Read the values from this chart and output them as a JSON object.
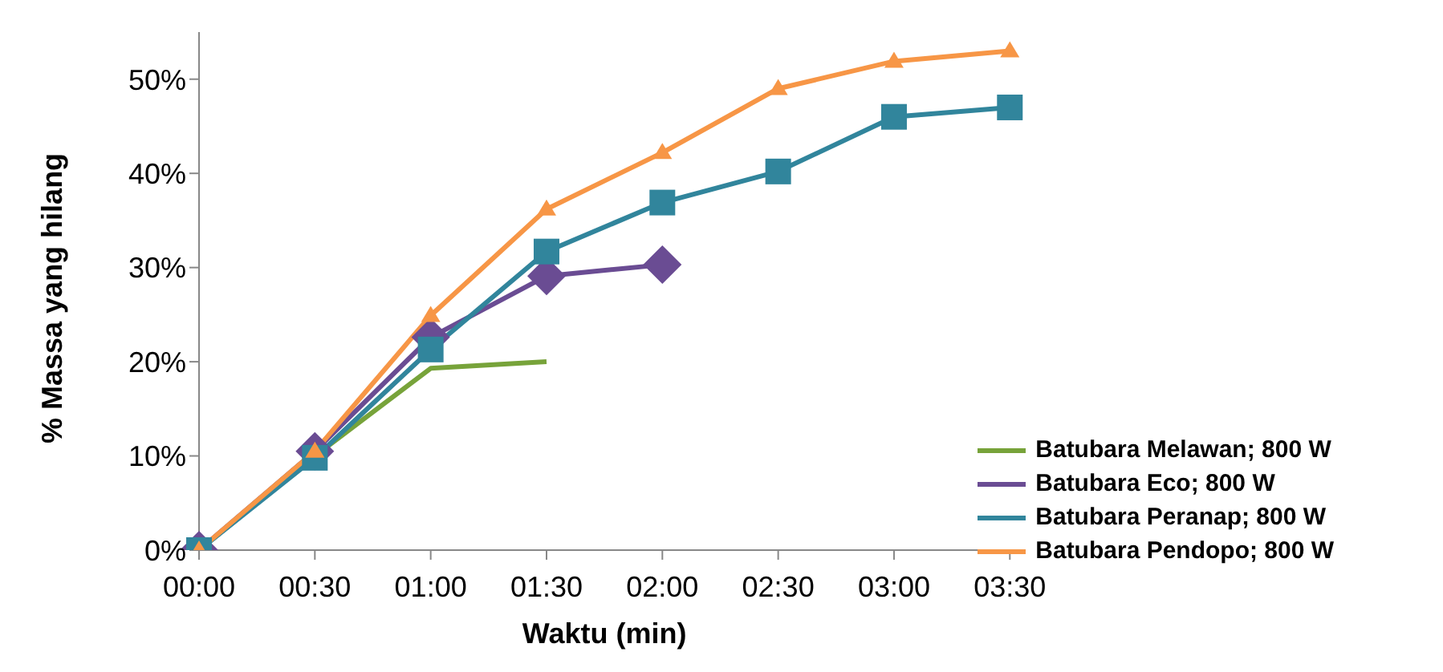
{
  "chart_data": {
    "type": "line",
    "xlabel": "Waktu (min)",
    "ylabel": "% Massa yang hilang",
    "categories": [
      "00:00",
      "00:30",
      "01:00",
      "01:30",
      "02:00",
      "02:30",
      "03:00",
      "03:30"
    ],
    "series": [
      {
        "name": "Batubara Melawan; 800 W",
        "color": "#77a33a",
        "marker": "none",
        "values": [
          0,
          10,
          19.3,
          20,
          null,
          null,
          null,
          null
        ]
      },
      {
        "name": "Batubara Eco; 800 W",
        "color": "#6a4c93",
        "marker": "diamond",
        "values": [
          0,
          10.5,
          22.6,
          29.1,
          30.3,
          null,
          null,
          null
        ]
      },
      {
        "name": "Batubara Peranap; 800 W",
        "color": "#31859c",
        "marker": "square",
        "values": [
          0,
          9.8,
          21.3,
          31.7,
          36.9,
          40.2,
          46.0,
          47.0
        ]
      },
      {
        "name": "Batubara Pendopo; 800 W",
        "color": "#f79646",
        "marker": "triangle",
        "values": [
          0,
          10.5,
          24.9,
          36.2,
          42.2,
          49.0,
          51.9,
          53.0
        ]
      }
    ],
    "ylim": [
      0,
      55
    ],
    "yticks": [
      {
        "value": 0,
        "label": "0%"
      },
      {
        "value": 10,
        "label": "10%"
      },
      {
        "value": 20,
        "label": "20%"
      },
      {
        "value": 30,
        "label": "30%"
      },
      {
        "value": 40,
        "label": "40%"
      },
      {
        "value": 50,
        "label": "50%"
      }
    ],
    "grid": false,
    "legend": "bottom right"
  }
}
